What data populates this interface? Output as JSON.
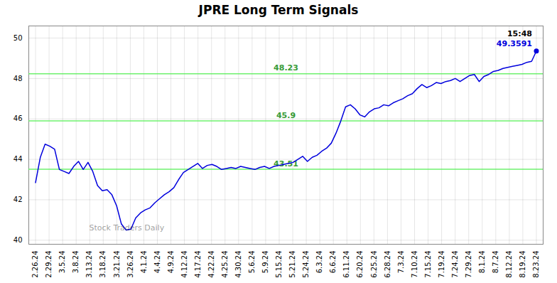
{
  "chart_data": {
    "type": "line",
    "title": "JPRE Long Term Signals",
    "x": [
      0,
      0.352381,
      0.704762,
      1.057143,
      1.409524,
      1.761905,
      2.114286,
      2.466667,
      2.819048,
      3.171429,
      3.52381,
      3.87619,
      4.228571,
      4.580952,
      4.933333,
      5.285714,
      5.638095,
      5.990476,
      6.342857,
      6.695238,
      7.047619,
      7.4,
      7.752381,
      8.104762,
      8.457143,
      8.809524,
      9.161905,
      9.514286,
      9.866667,
      10.219048,
      10.571429,
      10.92381,
      11.27619,
      11.628571,
      11.980952,
      12.333333,
      12.685714,
      13.038095,
      13.390476,
      13.742857,
      14.095238,
      14.447619,
      14.8,
      15.152381,
      15.504762,
      15.857143,
      16.209524,
      16.561905,
      16.914286,
      17.266667,
      17.619048,
      17.971429,
      18.32381,
      18.67619,
      19.028571,
      19.380952,
      19.733333,
      20.085714,
      20.438095,
      20.790476,
      21.142857,
      21.495238,
      21.847619,
      22.2,
      22.552381,
      22.904762,
      23.257143,
      23.609524,
      23.961905,
      24.314286,
      24.666667,
      25.019048,
      25.371429,
      25.72381,
      26.07619,
      26.428571,
      26.780952,
      27.133333,
      27.485714,
      27.838095,
      28.190476,
      28.542857,
      28.895238,
      29.247619,
      29.6,
      29.952381,
      30.304762,
      30.657143,
      31.009524,
      31.361905,
      31.714286,
      32.066667,
      32.419048,
      32.771429,
      33.12381,
      33.47619,
      33.828571,
      34.180952,
      34.533333,
      34.885714,
      35.238095,
      35.590476,
      35.942857,
      36.295238,
      36.647619,
      37
    ],
    "series": [
      {
        "color": "#0000dd",
        "values": [
          42.85,
          44.1,
          44.75,
          44.65,
          44.5,
          43.5,
          43.4,
          43.3,
          43.65,
          43.9,
          43.5,
          43.85,
          43.4,
          42.7,
          42.45,
          42.5,
          42.25,
          41.7,
          40.8,
          40.5,
          40.55,
          41.1,
          41.35,
          41.5,
          41.6,
          41.85,
          42.05,
          42.25,
          42.4,
          42.6,
          43.0,
          43.35,
          43.5,
          43.65,
          43.8,
          43.55,
          43.7,
          43.75,
          43.65,
          43.5,
          43.55,
          43.6,
          43.55,
          43.65,
          43.6,
          43.55,
          43.5,
          43.6,
          43.65,
          43.55,
          43.65,
          43.7,
          43.75,
          43.8,
          43.85,
          44.0,
          44.15,
          43.9,
          44.1,
          44.2,
          44.4,
          44.55,
          44.8,
          45.3,
          45.9,
          46.6,
          46.7,
          46.5,
          46.2,
          46.1,
          46.35,
          46.5,
          46.55,
          46.7,
          46.65,
          46.8,
          46.9,
          47.0,
          47.15,
          47.25,
          47.5,
          47.7,
          47.55,
          47.65,
          47.8,
          47.75,
          47.85,
          47.9,
          48.0,
          47.85,
          48.0,
          48.15,
          48.2,
          47.85,
          48.1,
          48.2,
          48.35,
          48.4,
          48.5,
          48.55,
          48.6,
          48.65,
          48.7,
          48.8,
          48.85,
          49.3591
        ]
      }
    ],
    "xlim": [
      -0.5,
      37.5
    ],
    "xticks": [
      {
        "value": 0,
        "label": "2.26.24"
      },
      {
        "value": 1,
        "label": "2.29.24"
      },
      {
        "value": 2,
        "label": "3.5.24"
      },
      {
        "value": 3,
        "label": "3.8.24"
      },
      {
        "value": 4,
        "label": "3.13.24"
      },
      {
        "value": 5,
        "label": "3.18.24"
      },
      {
        "value": 6,
        "label": "3.21.24"
      },
      {
        "value": 7,
        "label": "3.26.24"
      },
      {
        "value": 8,
        "label": "4.1.24"
      },
      {
        "value": 9,
        "label": "4.4.24"
      },
      {
        "value": 10,
        "label": "4.9.24"
      },
      {
        "value": 11,
        "label": "4.12.24"
      },
      {
        "value": 12,
        "label": "4.17.24"
      },
      {
        "value": 13,
        "label": "4.22.24"
      },
      {
        "value": 14,
        "label": "4.25.24"
      },
      {
        "value": 15,
        "label": "4.30.24"
      },
      {
        "value": 16,
        "label": "5.6.24"
      },
      {
        "value": 17,
        "label": "5.9.24"
      },
      {
        "value": 18,
        "label": "5.15.24"
      },
      {
        "value": 19,
        "label": "5.21.24"
      },
      {
        "value": 20,
        "label": "5.24.24"
      },
      {
        "value": 21,
        "label": "6.3.24"
      },
      {
        "value": 22,
        "label": "6.6.24"
      },
      {
        "value": 23,
        "label": "6.11.24"
      },
      {
        "value": 24,
        "label": "6.20.24"
      },
      {
        "value": 25,
        "label": "6.25.24"
      },
      {
        "value": 26,
        "label": "6.28.24"
      },
      {
        "value": 27,
        "label": "7.3.24"
      },
      {
        "value": 28,
        "label": "7.10.24"
      },
      {
        "value": 29,
        "label": "7.15.24"
      },
      {
        "value": 30,
        "label": "7.19.24"
      },
      {
        "value": 31,
        "label": "7.24.24"
      },
      {
        "value": 32,
        "label": "7.29.24"
      },
      {
        "value": 33,
        "label": "8.1.24"
      },
      {
        "value": 34,
        "label": "8.7.24"
      },
      {
        "value": 35,
        "label": "8.12.24"
      },
      {
        "value": 36,
        "label": "8.19.24"
      },
      {
        "value": 37,
        "label": "8.23.24"
      }
    ],
    "ylim": [
      39.8,
      50.6
    ],
    "yticks": [
      40,
      42,
      44,
      46,
      48,
      50
    ],
    "grid": true,
    "hlines": {
      "values": [
        48.23,
        45.9,
        43.51
      ],
      "color": "#55ee55"
    },
    "annotations": [
      "15:48",
      "49.3591",
      "Stock Traders Daily"
    ]
  }
}
